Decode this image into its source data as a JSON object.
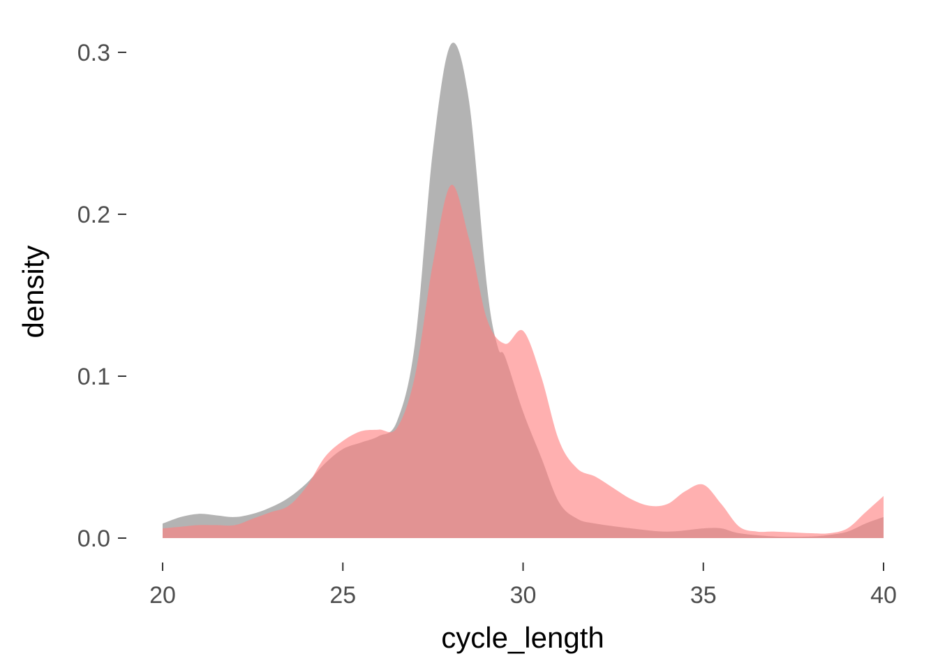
{
  "chart_data": {
    "type": "area",
    "xlabel": "cycle_length",
    "ylabel": "density",
    "xlim": [
      20,
      40
    ],
    "ylim": [
      0,
      0.3
    ],
    "x_ticks": [
      "20",
      "25",
      "30",
      "35",
      "40"
    ],
    "y_ticks": [
      "0.0",
      "0.1",
      "0.2",
      "0.3"
    ],
    "grid": false,
    "legend": "none",
    "series": [
      {
        "color": "#999999",
        "opacity": 0.75,
        "points": [
          [
            20,
            0.009
          ],
          [
            20.5,
            0.013
          ],
          [
            21,
            0.015
          ],
          [
            21.5,
            0.014
          ],
          [
            22,
            0.013
          ],
          [
            22.5,
            0.015
          ],
          [
            23,
            0.019
          ],
          [
            23.5,
            0.025
          ],
          [
            24,
            0.034
          ],
          [
            24.5,
            0.046
          ],
          [
            25,
            0.055
          ],
          [
            25.5,
            0.059
          ],
          [
            26,
            0.063
          ],
          [
            26.5,
            0.072
          ],
          [
            27,
            0.12
          ],
          [
            27.5,
            0.24
          ],
          [
            28,
            0.305
          ],
          [
            28.5,
            0.27
          ],
          [
            29,
            0.155
          ],
          [
            29.3,
            0.118
          ],
          [
            29.5,
            0.112
          ],
          [
            30,
            0.078
          ],
          [
            30.5,
            0.05
          ],
          [
            31,
            0.022
          ],
          [
            31.5,
            0.012
          ],
          [
            32,
            0.009
          ],
          [
            33,
            0.006
          ],
          [
            34,
            0.004
          ],
          [
            35,
            0.006
          ],
          [
            35.5,
            0.006
          ],
          [
            36,
            0.003
          ],
          [
            37,
            0.001
          ],
          [
            38,
            0.001
          ],
          [
            38.5,
            0.002
          ],
          [
            39,
            0.004
          ],
          [
            39.5,
            0.009
          ],
          [
            40,
            0.013
          ]
        ]
      },
      {
        "color": "#ff8080",
        "opacity": 0.62,
        "points": [
          [
            20,
            0.006
          ],
          [
            20.5,
            0.007
          ],
          [
            21,
            0.008
          ],
          [
            21.5,
            0.008
          ],
          [
            22,
            0.008
          ],
          [
            22.5,
            0.012
          ],
          [
            23,
            0.016
          ],
          [
            23.5,
            0.02
          ],
          [
            24,
            0.032
          ],
          [
            24.5,
            0.05
          ],
          [
            25,
            0.06
          ],
          [
            25.5,
            0.066
          ],
          [
            26,
            0.067
          ],
          [
            26.5,
            0.068
          ],
          [
            27,
            0.1
          ],
          [
            27.5,
            0.17
          ],
          [
            28,
            0.218
          ],
          [
            28.5,
            0.185
          ],
          [
            29,
            0.135
          ],
          [
            29.5,
            0.12
          ],
          [
            30,
            0.128
          ],
          [
            30.5,
            0.1
          ],
          [
            31,
            0.06
          ],
          [
            31.5,
            0.043
          ],
          [
            32,
            0.038
          ],
          [
            32.5,
            0.031
          ],
          [
            33,
            0.024
          ],
          [
            33.5,
            0.02
          ],
          [
            34,
            0.021
          ],
          [
            34.5,
            0.029
          ],
          [
            35,
            0.033
          ],
          [
            35.5,
            0.021
          ],
          [
            36,
            0.007
          ],
          [
            36.5,
            0.004
          ],
          [
            37,
            0.004
          ],
          [
            38,
            0.003
          ],
          [
            38.5,
            0.003
          ],
          [
            39,
            0.006
          ],
          [
            39.5,
            0.016
          ],
          [
            40,
            0.026
          ]
        ]
      }
    ]
  }
}
